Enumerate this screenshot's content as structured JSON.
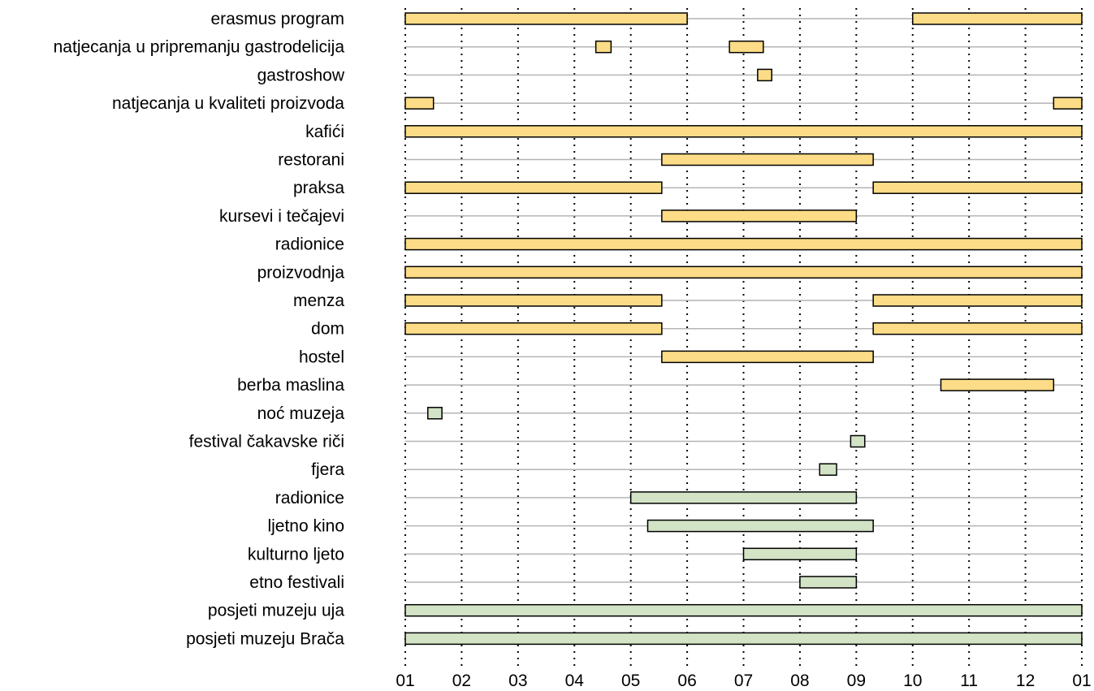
{
  "chart_data": {
    "type": "bar",
    "subtype": "timeline",
    "x_ticks": [
      "01",
      "02",
      "03",
      "04",
      "05",
      "06",
      "07",
      "08",
      "09",
      "10",
      "11",
      "12",
      "01"
    ],
    "xlim": [
      1,
      13
    ],
    "grid": true,
    "colors": {
      "yellow": "#fddc87",
      "green": "#d3e3c6",
      "outline": "#000000",
      "row_line": "#b4b4b4"
    },
    "rows": [
      {
        "label": "erasmus program",
        "color": "yellow",
        "spans": [
          [
            1,
            6
          ],
          [
            10,
            13
          ]
        ]
      },
      {
        "label": "natjecanja u pripremanju gastrodelicija",
        "color": "yellow",
        "spans": [
          [
            4.38,
            4.65
          ],
          [
            6.75,
            7.35
          ]
        ]
      },
      {
        "label": "gastroshow",
        "color": "yellow",
        "spans": [
          [
            7.25,
            7.5
          ]
        ]
      },
      {
        "label": "natjecanja u kvaliteti proizvoda",
        "color": "yellow",
        "spans": [
          [
            1,
            1.5
          ],
          [
            12.5,
            13
          ]
        ]
      },
      {
        "label": "kafići",
        "color": "yellow",
        "spans": [
          [
            1,
            13
          ]
        ]
      },
      {
        "label": "restorani",
        "color": "yellow",
        "spans": [
          [
            5.55,
            9.3
          ]
        ]
      },
      {
        "label": "praksa",
        "color": "yellow",
        "spans": [
          [
            1,
            5.55
          ],
          [
            9.3,
            13
          ]
        ]
      },
      {
        "label": "kursevi i tečajevi",
        "color": "yellow",
        "spans": [
          [
            5.55,
            9
          ]
        ]
      },
      {
        "label": "radionice",
        "color": "yellow",
        "spans": [
          [
            1,
            13
          ]
        ]
      },
      {
        "label": "proizvodnja",
        "color": "yellow",
        "spans": [
          [
            1,
            13
          ]
        ]
      },
      {
        "label": "menza",
        "color": "yellow",
        "spans": [
          [
            1,
            5.55
          ],
          [
            9.3,
            13
          ]
        ]
      },
      {
        "label": "dom",
        "color": "yellow",
        "spans": [
          [
            1,
            5.55
          ],
          [
            9.3,
            13
          ]
        ]
      },
      {
        "label": "hostel",
        "color": "yellow",
        "spans": [
          [
            5.55,
            9.3
          ]
        ]
      },
      {
        "label": "berba maslina",
        "color": "yellow",
        "spans": [
          [
            10.5,
            12.5
          ]
        ]
      },
      {
        "label": "noć muzeja",
        "color": "green",
        "spans": [
          [
            1.4,
            1.65
          ]
        ]
      },
      {
        "label": "festival čakavske riči",
        "color": "green",
        "spans": [
          [
            8.9,
            9.15
          ]
        ]
      },
      {
        "label": "fjera",
        "color": "green",
        "spans": [
          [
            8.35,
            8.65
          ]
        ]
      },
      {
        "label": "radionice",
        "color": "green",
        "spans": [
          [
            5,
            9
          ]
        ]
      },
      {
        "label": "ljetno kino",
        "color": "green",
        "spans": [
          [
            5.3,
            9.3
          ]
        ]
      },
      {
        "label": "kulturno ljeto",
        "color": "green",
        "spans": [
          [
            7,
            9
          ]
        ]
      },
      {
        "label": "etno festivali",
        "color": "green",
        "spans": [
          [
            8,
            9
          ]
        ]
      },
      {
        "label": "posjeti muzeju uja",
        "color": "green",
        "spans": [
          [
            1,
            13
          ]
        ]
      },
      {
        "label": "posjeti muzeju Brača",
        "color": "green",
        "spans": [
          [
            1,
            13
          ]
        ]
      }
    ]
  }
}
